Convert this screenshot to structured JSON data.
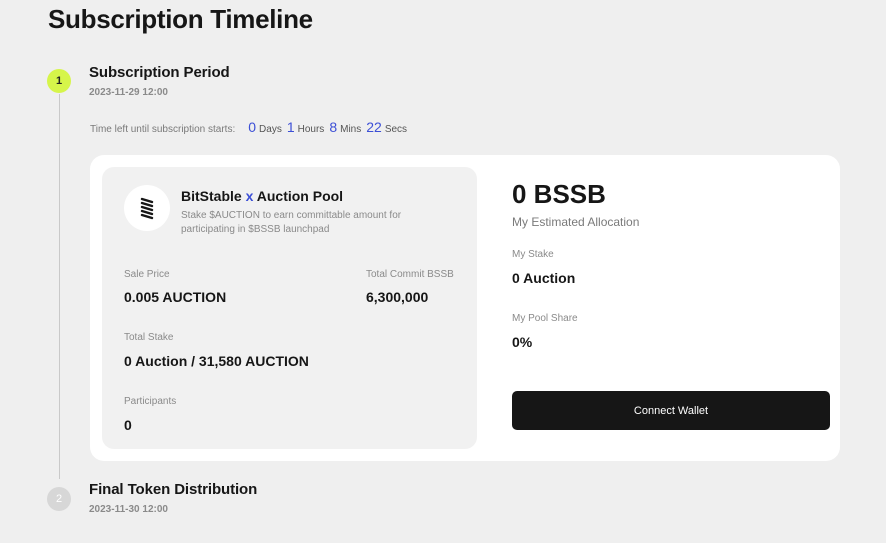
{
  "page": {
    "title": "Subscription Timeline"
  },
  "steps": [
    {
      "number": "1",
      "title": "Subscription Period",
      "date": "2023-11-29 12:00",
      "status": "active"
    },
    {
      "number": "2",
      "title": "Final Token Distribution",
      "date": "2023-11-30 12:00",
      "status": "inactive"
    }
  ],
  "countdown": {
    "label": "Time left until subscription starts:",
    "days": "0",
    "days_unit": "Days",
    "hours": "1",
    "hours_unit": "Hours",
    "mins": "8",
    "mins_unit": "Mins",
    "secs": "22",
    "secs_unit": "Secs"
  },
  "pool": {
    "name_left": "BitStable",
    "name_x": "x",
    "name_right": "Auction Pool",
    "description": "Stake $AUCTION to earn committable amount for participating in $BSSB launchpad",
    "sale_price_label": "Sale Price",
    "sale_price_value": "0.005 AUCTION",
    "total_commit_label": "Total Commit BSSB",
    "total_commit_value": "6,300,000",
    "total_stake_label": "Total Stake",
    "total_stake_value": "0 Auction / 31,580 AUCTION",
    "participants_label": "Participants",
    "participants_value": "0"
  },
  "allocation": {
    "amount": "0 BSSB",
    "label": "My Estimated Allocation",
    "my_stake_label": "My Stake",
    "my_stake_value": "0 Auction",
    "pool_share_label": "My Pool Share",
    "pool_share_value": "0%",
    "connect_label": "Connect Wallet"
  },
  "colors": {
    "accent_blue": "#3c4fd6",
    "active_step": "#d6f54a",
    "inactive_step": "#d7d7d7",
    "button_dark": "#161616"
  },
  "icons": {
    "pool_logo": "bitstable-logo-icon"
  }
}
